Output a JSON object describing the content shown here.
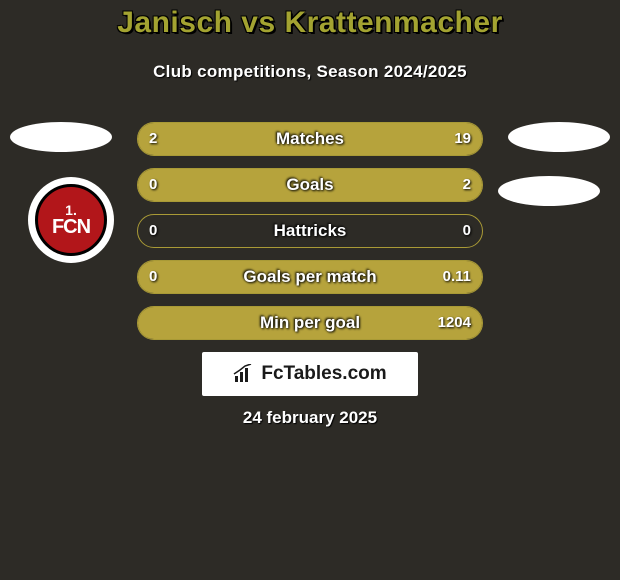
{
  "title": "Janisch vs Krattenmacher",
  "subtitle": "Club competitions, Season 2024/2025",
  "date": "24 february 2025",
  "logo_text": "FcTables.com",
  "colors": {
    "background": "#2d2b26",
    "accent": "#b6a33c",
    "title": "#a3a331",
    "badge_red": "#b2161a"
  },
  "club_badge": {
    "line1": "1.",
    "line2": "FCN"
  },
  "rows": [
    {
      "label": "Matches",
      "left": "2",
      "right": "19",
      "left_pct": 9.5,
      "right_pct": 90.5
    },
    {
      "label": "Goals",
      "left": "0",
      "right": "2",
      "left_pct": 0,
      "right_pct": 100
    },
    {
      "label": "Hattricks",
      "left": "0",
      "right": "0",
      "left_pct": 0,
      "right_pct": 0
    },
    {
      "label": "Goals per match",
      "left": "0",
      "right": "0.11",
      "left_pct": 0,
      "right_pct": 100
    },
    {
      "label": "Min per goal",
      "left": "",
      "right": "1204",
      "left_pct": 0,
      "right_pct": 100
    }
  ]
}
